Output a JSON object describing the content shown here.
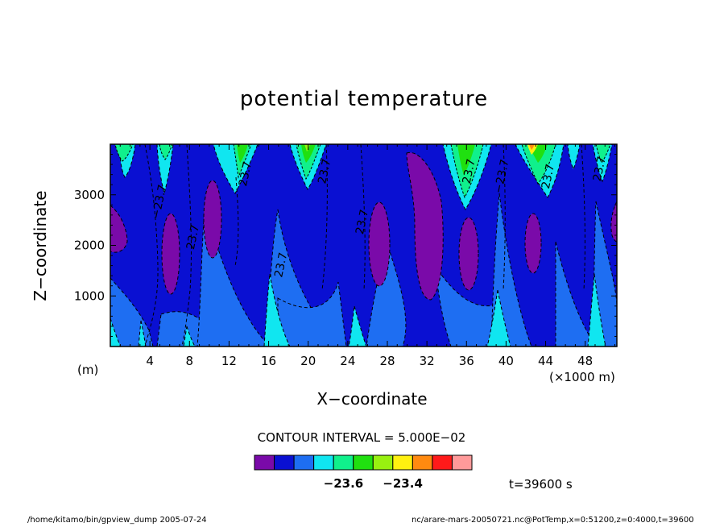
{
  "chart_data": {
    "type": "heatmap",
    "title": "potential temperature",
    "xlabel": "X−coordinate",
    "ylabel": "Z−coordinate",
    "y_unit": "(m)",
    "x_unit": "(×1000 m)",
    "xlim": [
      0,
      51.2
    ],
    "ylim": [
      0,
      4000
    ],
    "x_ticks": [
      "4",
      "8",
      "12",
      "16",
      "20",
      "24",
      "28",
      "32",
      "36",
      "40",
      "44",
      "48"
    ],
    "y_ticks": [
      "1000",
      "2000",
      "3000"
    ],
    "contour_interval": "CONTOUR INTERVAL = 5.000E−02",
    "contour_labels": [
      {
        "text": "−23.7",
        "x": 5.3,
        "z": 2850
      },
      {
        "text": "23.7",
        "x": 8.7,
        "z": 2150
      },
      {
        "text": "23.7",
        "x": 14.0,
        "z": 3400
      },
      {
        "text": "23.7",
        "x": 17.6,
        "z": 1600
      },
      {
        "text": "23.7",
        "x": 22.0,
        "z": 3450
      },
      {
        "text": "23.7",
        "x": 25.8,
        "z": 2450
      },
      {
        "text": "23.7",
        "x": 36.6,
        "z": 3450
      },
      {
        "text": "−23.7",
        "x": 39.9,
        "z": 3350
      },
      {
        "text": "23.7",
        "x": 44.6,
        "z": 3350
      },
      {
        "text": "23.7",
        "x": 49.8,
        "z": 3500
      }
    ],
    "colorbar": {
      "colors": [
        "#7a0aa9",
        "#0a10d2",
        "#1e6ef2",
        "#10e6f0",
        "#10f08c",
        "#20e010",
        "#98f010",
        "#fff010",
        "#ff8a10",
        "#ff1a1a",
        "#ff9a9a"
      ],
      "labels": [
        "−23.6",
        "−23.4"
      ]
    },
    "fields": {
      "background_level": "#0a10d2",
      "lower_level": "#1e6ef2",
      "core_level": "#7a0aa9",
      "high_level": "#10e6f0",
      "top_levels": [
        "#10f08c",
        "#20e010",
        "#fff010",
        "#ff8a10"
      ]
    }
  },
  "time_label": "t=39600 s",
  "footer": {
    "left": "/home/kitamo/bin/gpview_dump   2005-07-24",
    "right": "nc/arare-mars-20050721.nc@PotTemp,x=0:51200,z=0:4000,t=39600"
  }
}
